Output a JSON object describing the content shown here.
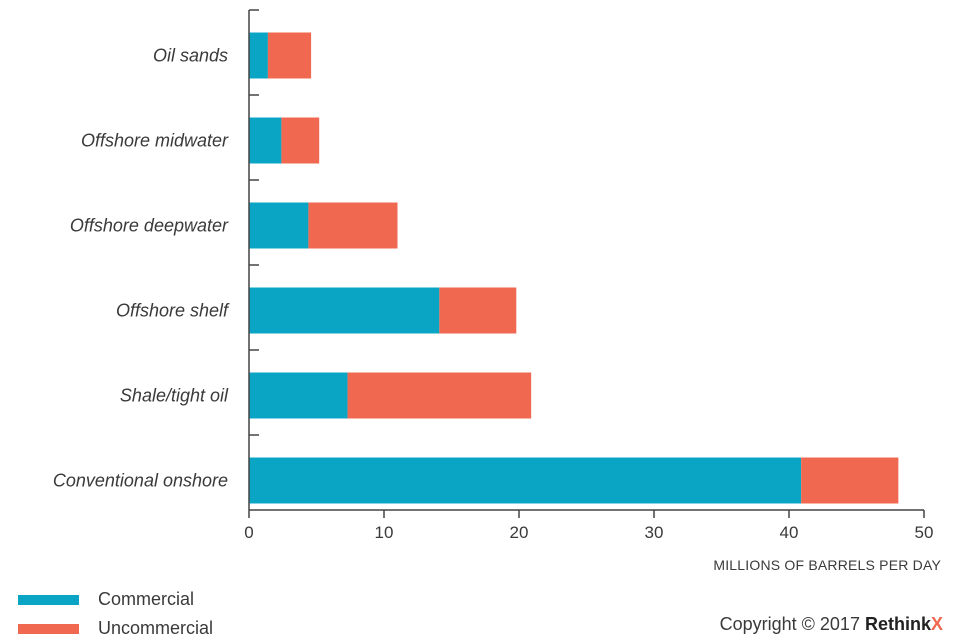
{
  "chart_data": {
    "type": "bar",
    "orientation": "horizontal",
    "stacked": true,
    "categories": [
      "Oil sands",
      "Offshore midwater",
      "Offshore deepwater",
      "Offshore shelf",
      "Shale/tight oil",
      "Conventional onshore"
    ],
    "series": [
      {
        "name": "Commercial",
        "color": "#0aa4c4",
        "values": [
          1.4,
          2.4,
          4.4,
          14.1,
          7.3,
          40.9
        ]
      },
      {
        "name": "Uncommercial",
        "color": "#f0684f",
        "values": [
          3.2,
          2.8,
          6.6,
          5.7,
          13.6,
          7.2
        ]
      }
    ],
    "xlabel": "MILLIONS OF BARRELS PER DAY",
    "xlim": [
      0,
      50
    ],
    "xticks": [
      "0",
      "10",
      "20",
      "30",
      "40",
      "50"
    ],
    "grid": false,
    "legend_position": "bottom-left"
  },
  "copyright": {
    "text": "Copyright © 2017",
    "brand_main": "Rethink",
    "brand_accent": "X",
    "accent_color": "#f0684f"
  }
}
